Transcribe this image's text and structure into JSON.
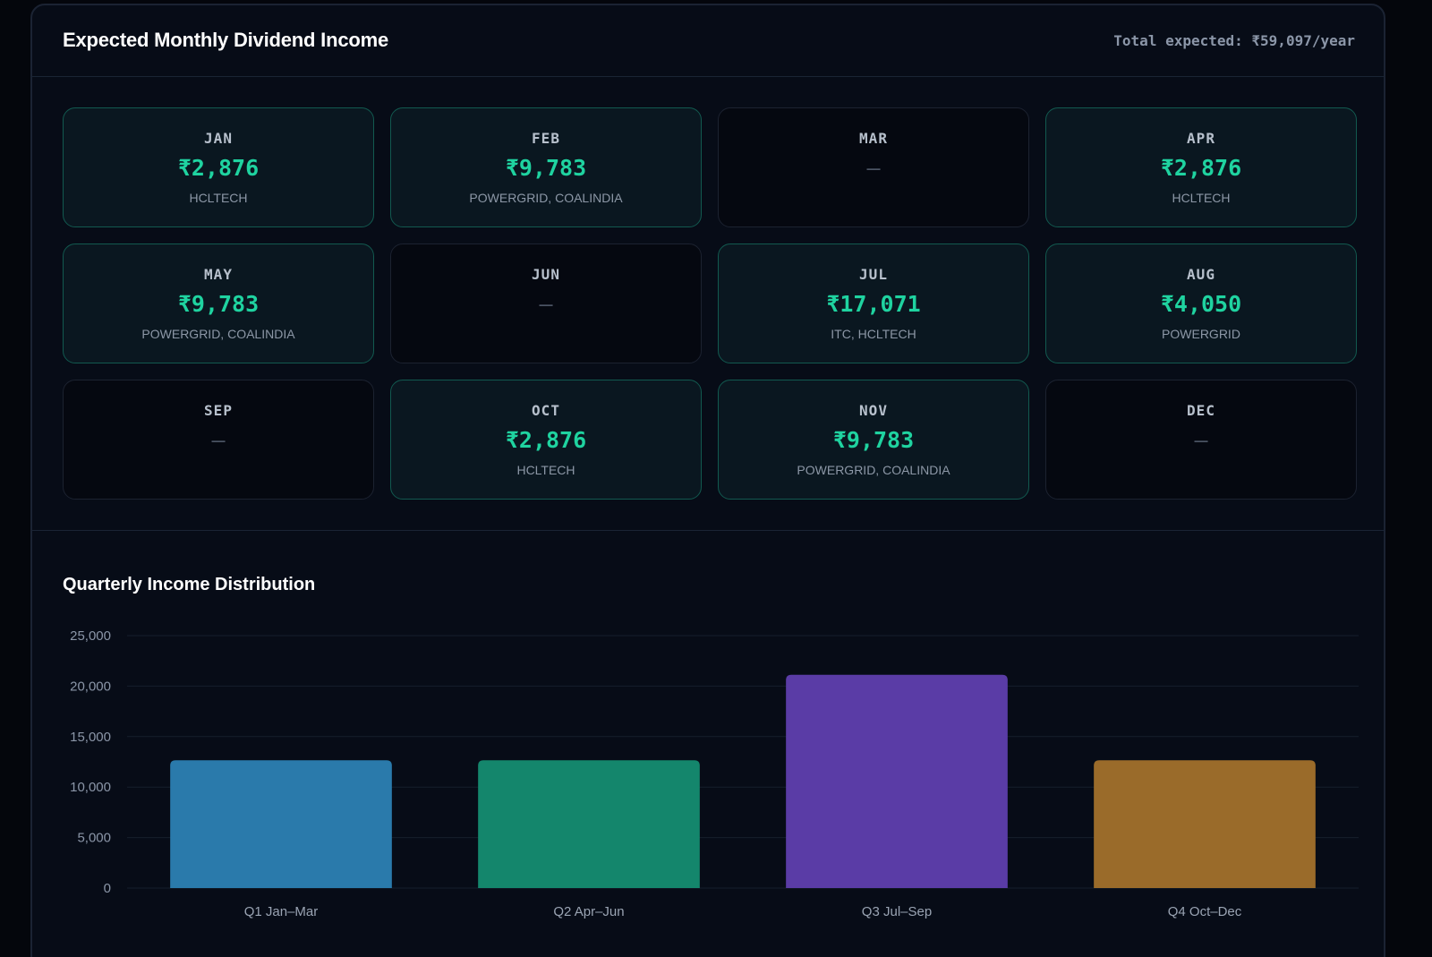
{
  "header": {
    "title": "Expected Monthly Dividend Income",
    "total": "Total expected: ₹59,097/year"
  },
  "months": [
    {
      "month": "JAN",
      "amount": "₹2,876",
      "stocks": "HCLTECH",
      "has_income": true
    },
    {
      "month": "FEB",
      "amount": "₹9,783",
      "stocks": "POWERGRID, COALINDIA",
      "has_income": true
    },
    {
      "month": "MAR",
      "amount": "—",
      "stocks": "",
      "has_income": false
    },
    {
      "month": "APR",
      "amount": "₹2,876",
      "stocks": "HCLTECH",
      "has_income": true
    },
    {
      "month": "MAY",
      "amount": "₹9,783",
      "stocks": "POWERGRID, COALINDIA",
      "has_income": true
    },
    {
      "month": "JUN",
      "amount": "—",
      "stocks": "",
      "has_income": false
    },
    {
      "month": "JUL",
      "amount": "₹17,071",
      "stocks": "ITC, HCLTECH",
      "has_income": true
    },
    {
      "month": "AUG",
      "amount": "₹4,050",
      "stocks": "POWERGRID",
      "has_income": true
    },
    {
      "month": "SEP",
      "amount": "—",
      "stocks": "",
      "has_income": false
    },
    {
      "month": "OCT",
      "amount": "₹2,876",
      "stocks": "HCLTECH",
      "has_income": true
    },
    {
      "month": "NOV",
      "amount": "₹9,783",
      "stocks": "POWERGRID, COALINDIA",
      "has_income": true
    },
    {
      "month": "DEC",
      "amount": "—",
      "stocks": "",
      "has_income": false
    }
  ],
  "chart_data": {
    "type": "bar",
    "title": "Quarterly Income Distribution",
    "categories": [
      "Q1 Jan–Mar",
      "Q2 Apr–Jun",
      "Q3 Jul–Sep",
      "Q4 Oct–Dec"
    ],
    "values": [
      12659,
      12659,
      21121,
      12659
    ],
    "colors": [
      "#2a7aab",
      "#14866c",
      "#5a3ca6",
      "#9a6b2a"
    ],
    "ylim": [
      0,
      25000
    ],
    "yticks": [
      0,
      5000,
      10000,
      15000,
      20000,
      25000
    ],
    "ytick_labels": [
      "0",
      "5,000",
      "10,000",
      "15,000",
      "20,000",
      "25,000"
    ],
    "grid": true,
    "xlabel": "",
    "ylabel": ""
  }
}
